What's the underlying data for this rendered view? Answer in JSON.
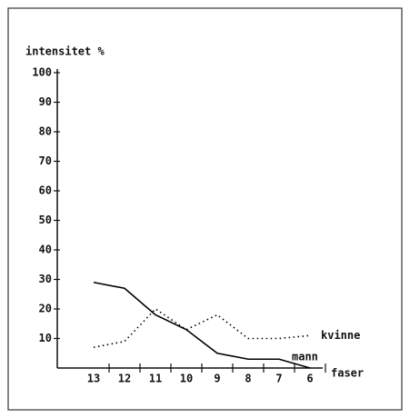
{
  "chart_data": {
    "type": "line",
    "y_label": "intensitet %",
    "x_label": "faser",
    "categories": [
      "13",
      "12",
      "11",
      "10",
      "9",
      "8",
      "7",
      "6"
    ],
    "series": [
      {
        "name": "mann",
        "color": "#000000",
        "style": "solid",
        "values": [
          29,
          27,
          18,
          13,
          5,
          3,
          3,
          0
        ]
      },
      {
        "name": "kvinne",
        "color": "#000000",
        "style": "dotted",
        "values": [
          7,
          9,
          20,
          13,
          18,
          10,
          10,
          11
        ]
      }
    ],
    "ylim": [
      0,
      100
    ],
    "yticks": [
      10,
      20,
      30,
      40,
      50,
      60,
      70,
      80,
      90,
      100
    ]
  }
}
